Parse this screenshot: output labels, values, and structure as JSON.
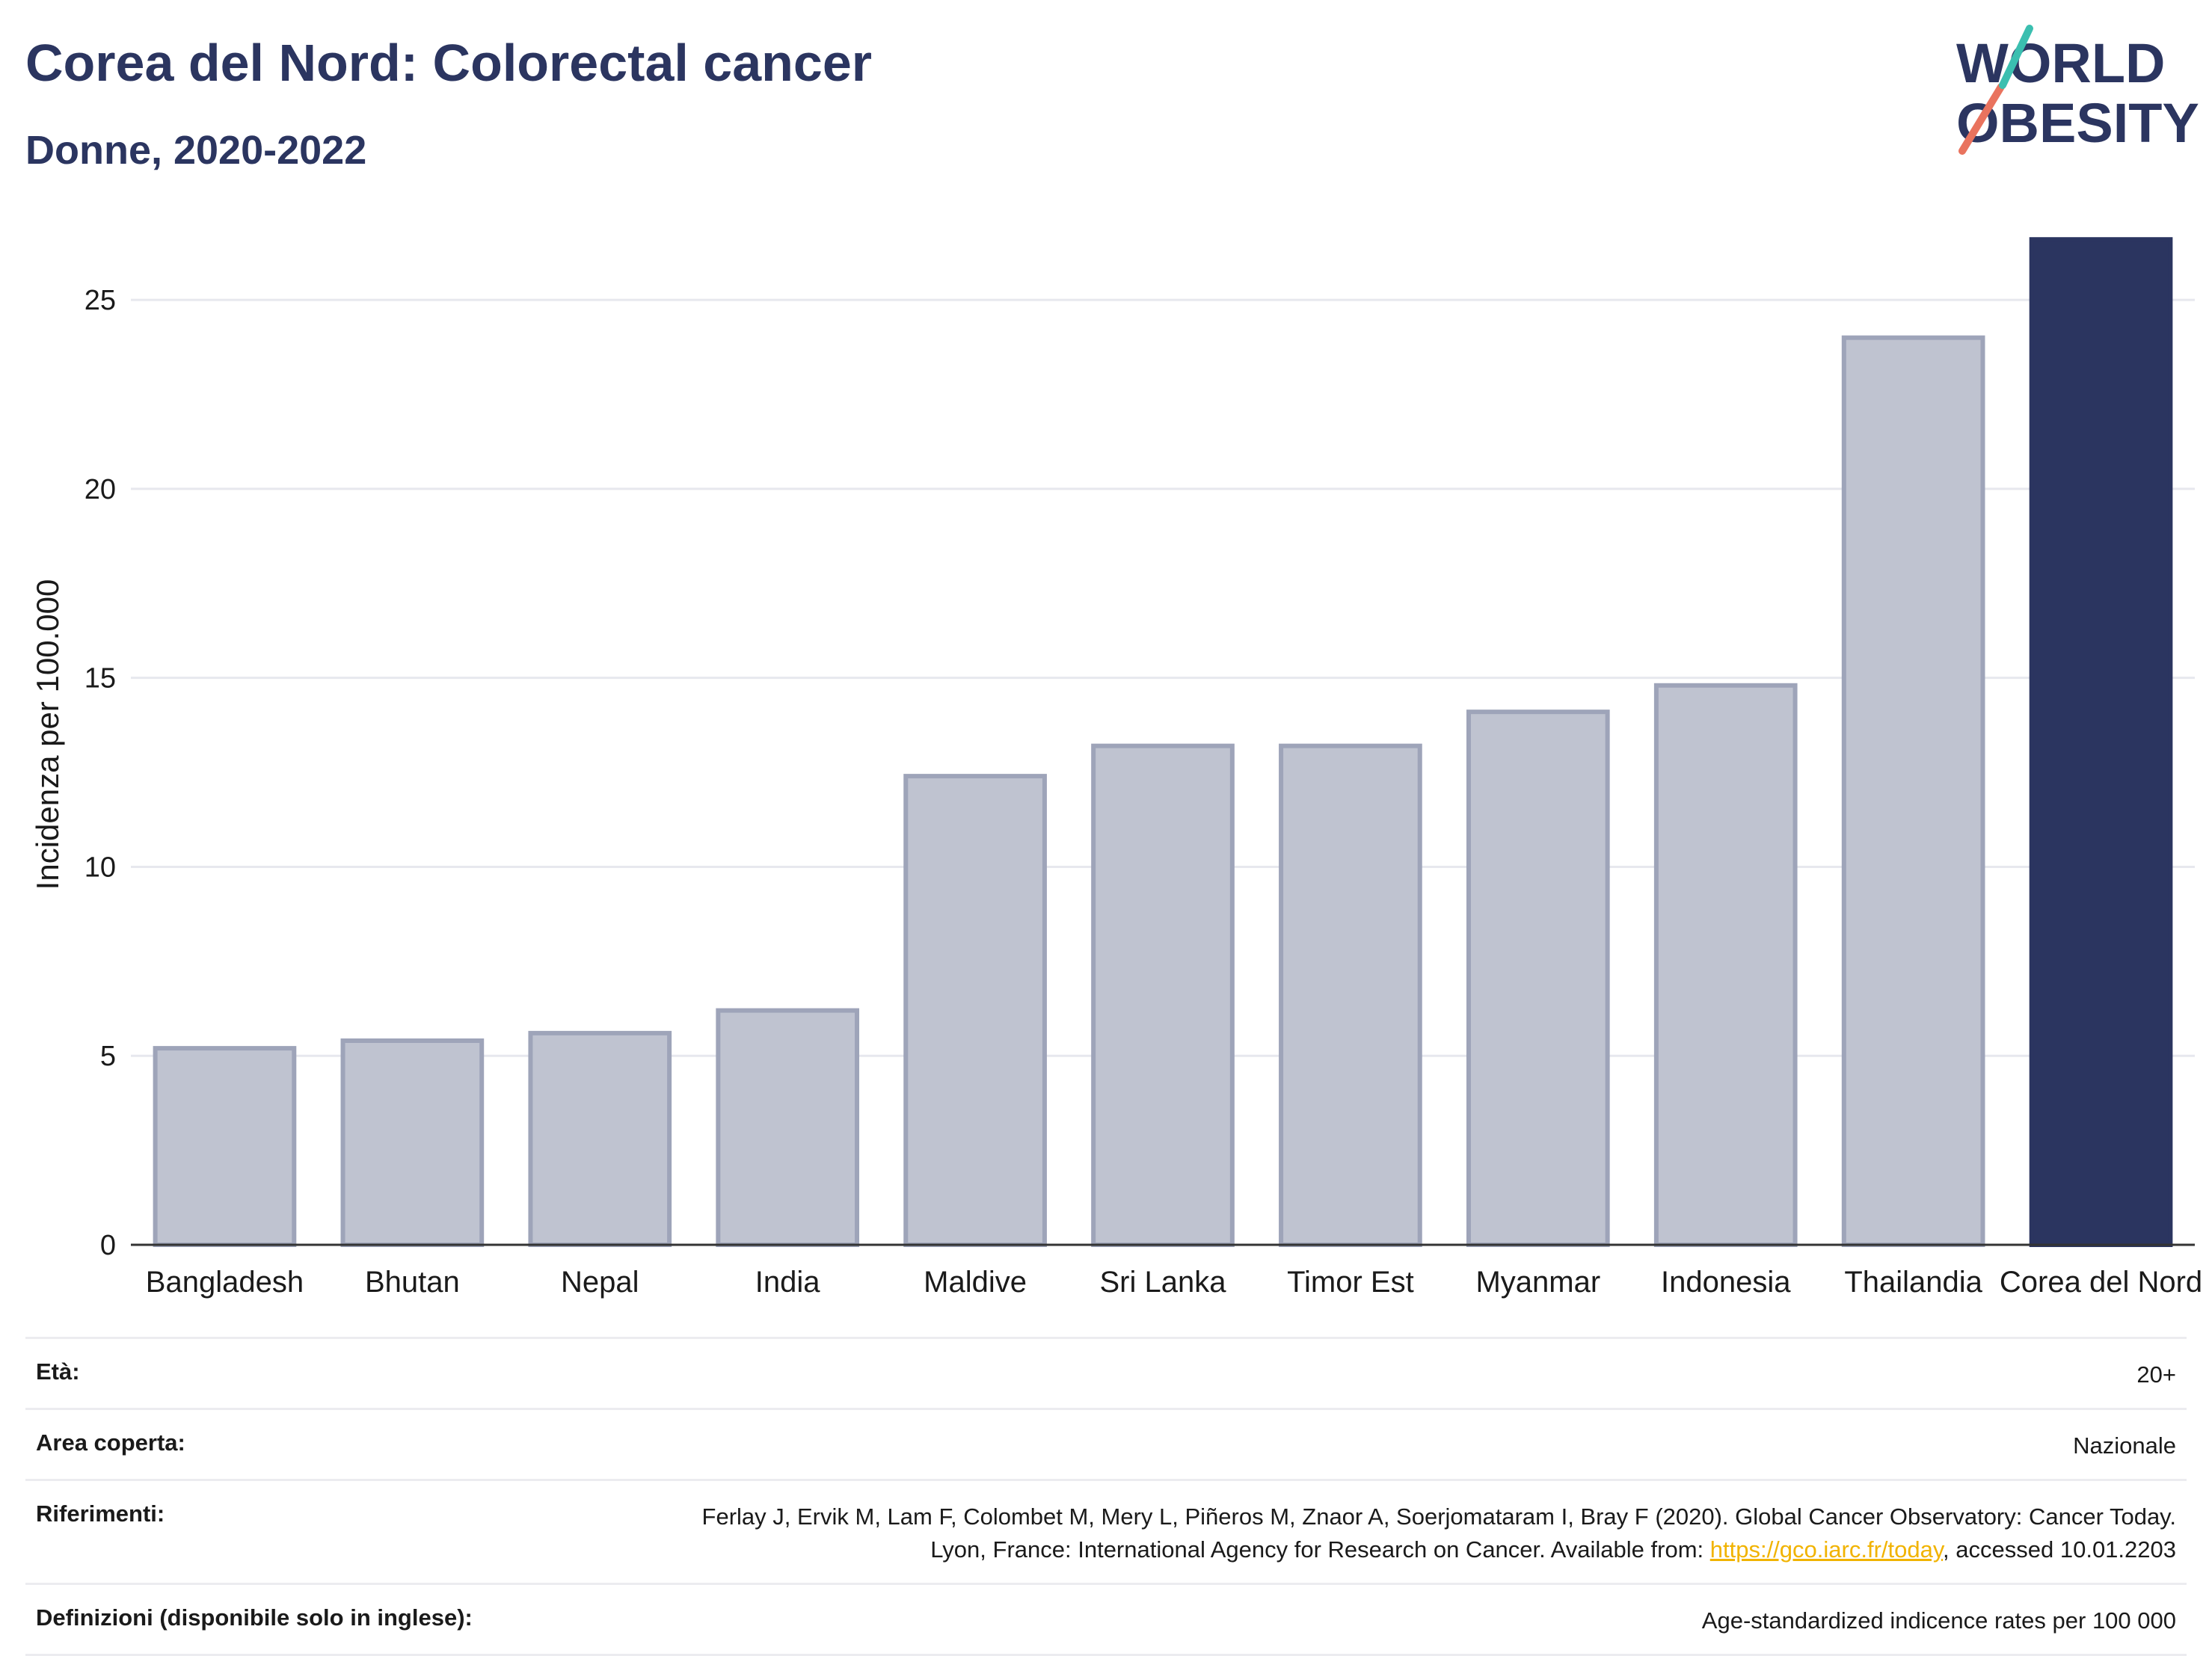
{
  "header": {
    "title": "Corea del Nord: Colorectal cancer",
    "subtitle": "Donne, 2020-2022"
  },
  "logo": {
    "line1": "WORLD",
    "line2": "OBESITY"
  },
  "colors": {
    "highlight": "#2b3560",
    "muted": "#bfc3d0",
    "muted_stroke": "#9ea4b9",
    "grid": "#e7e8ee",
    "link": "#f1b300"
  },
  "chart_data": {
    "type": "bar",
    "categories": [
      "Bangladesh",
      "Bhutan",
      "Nepal",
      "India",
      "Maldive",
      "Sri Lanka",
      "Timor Est",
      "Myanmar",
      "Indonesia",
      "Thailandia",
      "Corea del Nord"
    ],
    "values": [
      5.2,
      5.4,
      5.6,
      6.2,
      12.4,
      13.2,
      13.2,
      14.1,
      14.8,
      24.0,
      26.6
    ],
    "highlight": "Corea del Nord",
    "ylabel": "Incidenza per 100.000",
    "ylim": [
      0,
      27
    ],
    "yticks": [
      0,
      5,
      10,
      15,
      20,
      25
    ],
    "grid": true
  },
  "meta": [
    {
      "key": "Età:",
      "value": "20+"
    },
    {
      "key": "Area coperta:",
      "value": "Nazionale"
    },
    {
      "key": "Riferimenti:",
      "value_pre": "Ferlay J, Ervik M, Lam F, Colombet M, Mery L, Piñeros M, Znaor A, Soerjomataram I, Bray F (2020). Global Cancer Observatory: Cancer Today. Lyon, France: International Agency for Research on Cancer. Available from: ",
      "link": "https://gco.iarc.fr/today",
      "value_post": ", accessed 10.01.2203"
    },
    {
      "key": "Definizioni (disponibile solo in inglese):",
      "value": "Age-standardized indicence rates per 100 000"
    }
  ]
}
